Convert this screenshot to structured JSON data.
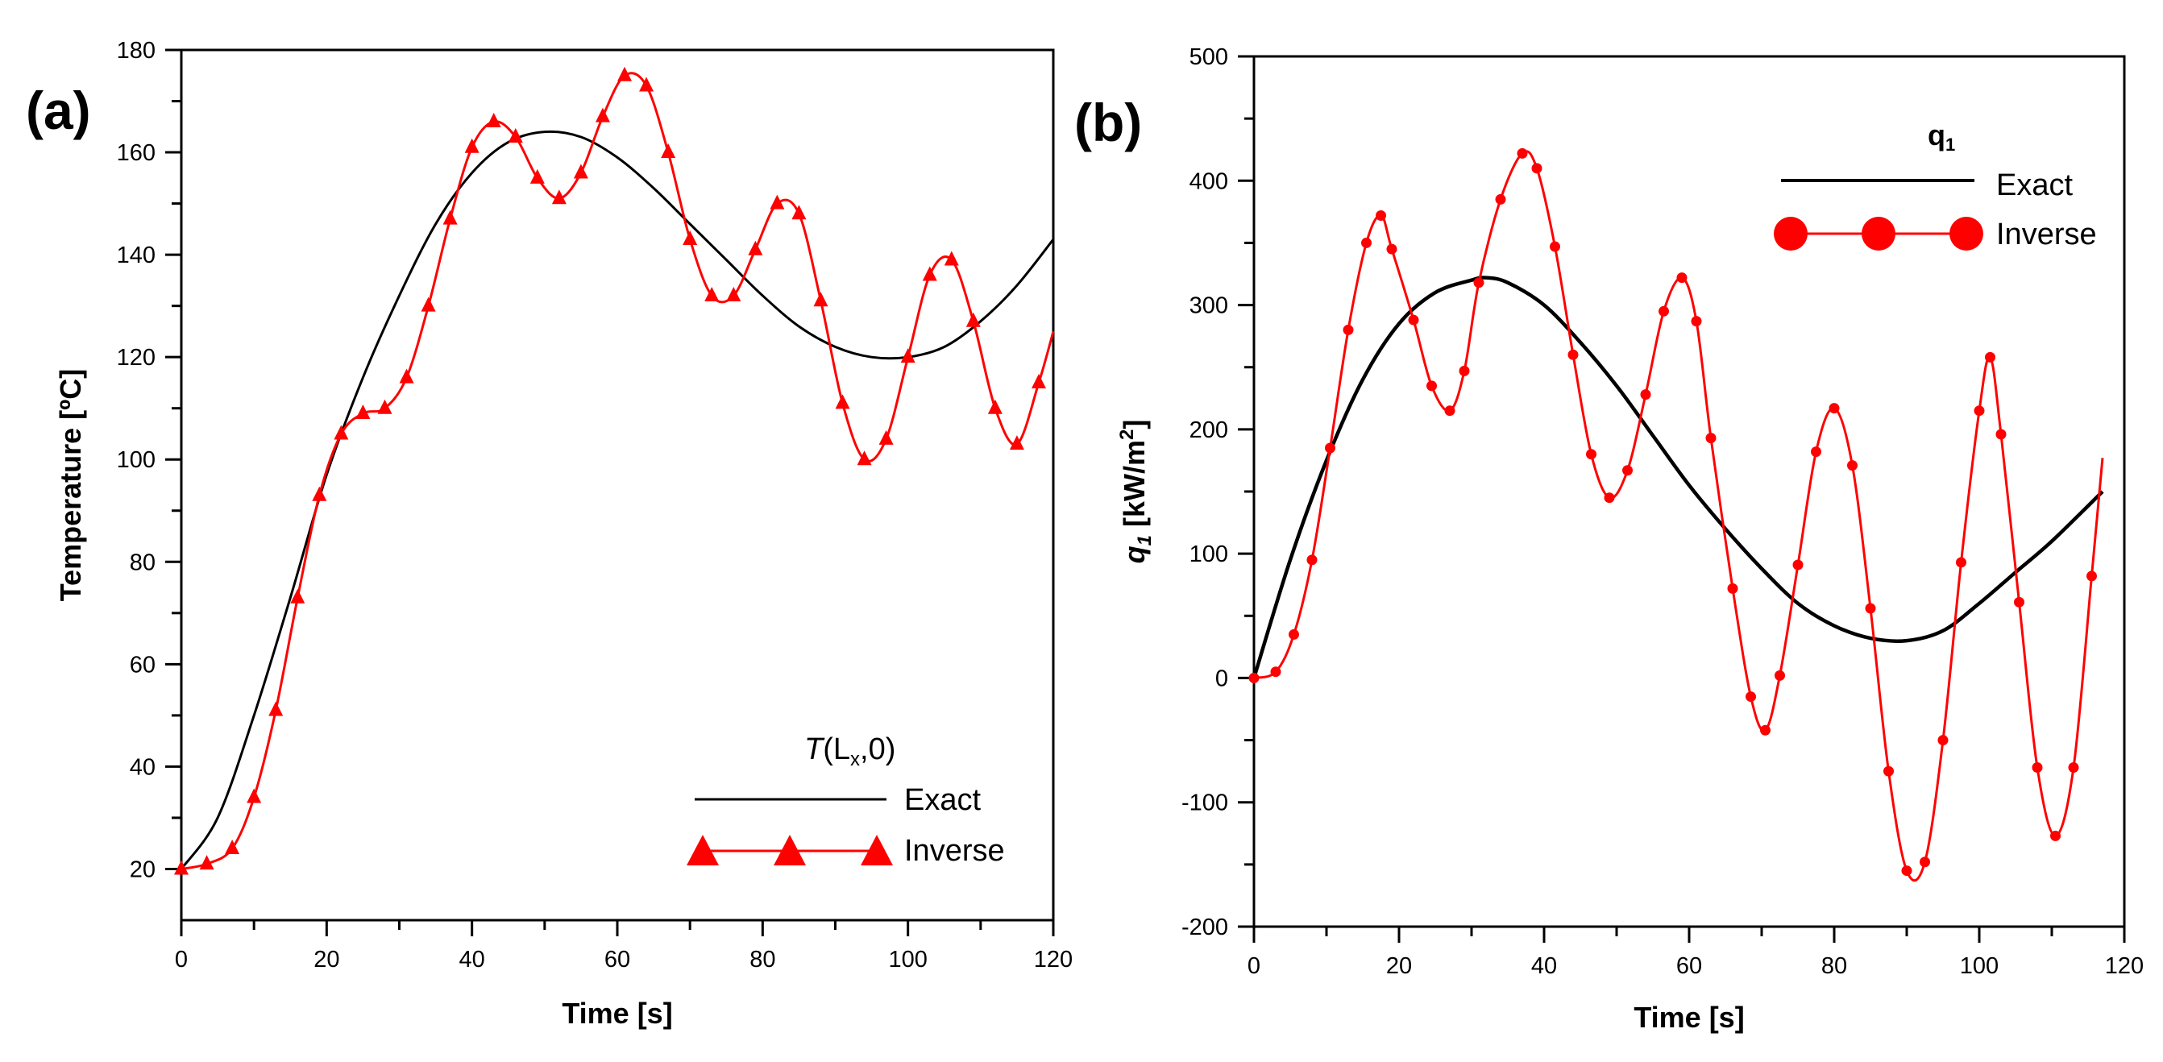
{
  "chart_data": [
    {
      "type": "line",
      "panel_label": "(a)",
      "xlabel": "Time [s]",
      "ylabel": "Temperature [ºC]",
      "xlim": [
        0,
        120
      ],
      "ylim": [
        10,
        180
      ],
      "xticks": [
        0,
        20,
        40,
        60,
        80,
        100,
        120
      ],
      "yticks": [
        20,
        40,
        60,
        80,
        100,
        120,
        140,
        160,
        180
      ],
      "legend": {
        "title": "T(Lx,0)",
        "title_italic": "T",
        "title_rest": "(L",
        "title_sub": "x",
        "title_end": ",0)",
        "placement": "bottom-right"
      },
      "series": [
        {
          "name": "Exact",
          "color": "#000000",
          "marker": "none",
          "x": [
            0,
            5,
            10,
            15,
            20,
            25,
            30,
            35,
            40,
            45,
            50,
            55,
            60,
            65,
            70,
            75,
            80,
            85,
            90,
            95,
            100,
            105,
            110,
            115,
            120
          ],
          "y": [
            20,
            30,
            50,
            73,
            97,
            116,
            132,
            146,
            156,
            162,
            164,
            163,
            159,
            153,
            146,
            139,
            132,
            126,
            122,
            120,
            120,
            122,
            127,
            134,
            143
          ]
        },
        {
          "name": "Inverse",
          "color": "#ff0000",
          "marker": "triangle",
          "x": [
            0,
            3.5,
            7,
            10,
            13,
            16,
            19,
            22,
            25,
            28,
            31,
            34,
            37,
            40,
            43,
            46,
            49,
            52,
            55,
            58,
            61,
            64,
            67,
            70,
            73,
            76,
            79,
            82,
            85,
            88,
            91,
            94,
            97,
            100,
            103,
            106,
            109,
            112,
            115,
            118
          ],
          "y": [
            20,
            21,
            24,
            34,
            51,
            73,
            93,
            105,
            109,
            110,
            116,
            130,
            147,
            161,
            166,
            163,
            155,
            151,
            156,
            167,
            175,
            173,
            160,
            143,
            132,
            132,
            141,
            150,
            148,
            131,
            111,
            100,
            104,
            120,
            136,
            139,
            127,
            110,
            103,
            115
          ],
          "end": [
            120,
            125
          ]
        }
      ]
    },
    {
      "type": "line",
      "panel_label": "(b)",
      "xlabel": "Time [s]",
      "ylabel": "q1 [kW/m2]",
      "ylabel_q": "q",
      "ylabel_sub": "1",
      "ylabel_mid": " [kW/m",
      "ylabel_sup": "2",
      "ylabel_end": "]",
      "xlim": [
        0,
        120
      ],
      "ylim": [
        -200,
        500
      ],
      "xticks": [
        0,
        20,
        40,
        60,
        80,
        100,
        120
      ],
      "yticks": [
        -200,
        -100,
        0,
        100,
        200,
        300,
        400,
        500
      ],
      "legend": {
        "title": "q1",
        "title_q": "q",
        "title_sub": "1",
        "placement": "top-right"
      },
      "series": [
        {
          "name": "Exact",
          "color": "#000000",
          "marker": "none",
          "x": [
            0,
            5,
            10,
            15,
            20,
            25,
            30,
            32,
            35,
            40,
            45,
            50,
            55,
            60,
            65,
            70,
            75,
            80,
            85,
            90,
            95,
            100,
            105,
            110,
            117
          ],
          "y": [
            0,
            95,
            175,
            240,
            285,
            310,
            320,
            322,
            318,
            300,
            270,
            235,
            195,
            155,
            120,
            88,
            60,
            42,
            32,
            30,
            38,
            60,
            85,
            110,
            150
          ]
        },
        {
          "name": "Inverse",
          "color": "#ff0000",
          "marker": "circle",
          "x": [
            0,
            3,
            5.5,
            8,
            10.5,
            13,
            15.5,
            17.5,
            19,
            22,
            24.5,
            27,
            29,
            31,
            34,
            37,
            39,
            41.5,
            44,
            46.5,
            49,
            51.5,
            54,
            56.5,
            59,
            61,
            63,
            66,
            68.5,
            70.5,
            72.5,
            75,
            77.5,
            80,
            82.5,
            85,
            87.5,
            90,
            92.5,
            95,
            97.5,
            100,
            101.5,
            103,
            105.5,
            108,
            110.5,
            113,
            115.5
          ],
          "y": [
            0,
            5,
            35,
            95,
            185,
            280,
            350,
            372,
            345,
            288,
            235,
            215,
            247,
            318,
            385,
            422,
            410,
            347,
            260,
            180,
            145,
            167,
            228,
            295,
            322,
            287,
            193,
            72,
            -15,
            -42,
            2,
            91,
            182,
            217,
            171,
            56,
            -75,
            -155,
            -148,
            -50,
            93,
            215,
            258,
            196,
            61,
            -72,
            -127,
            -72,
            82
          ],
          "end": [
            117,
            177
          ]
        }
      ]
    }
  ]
}
